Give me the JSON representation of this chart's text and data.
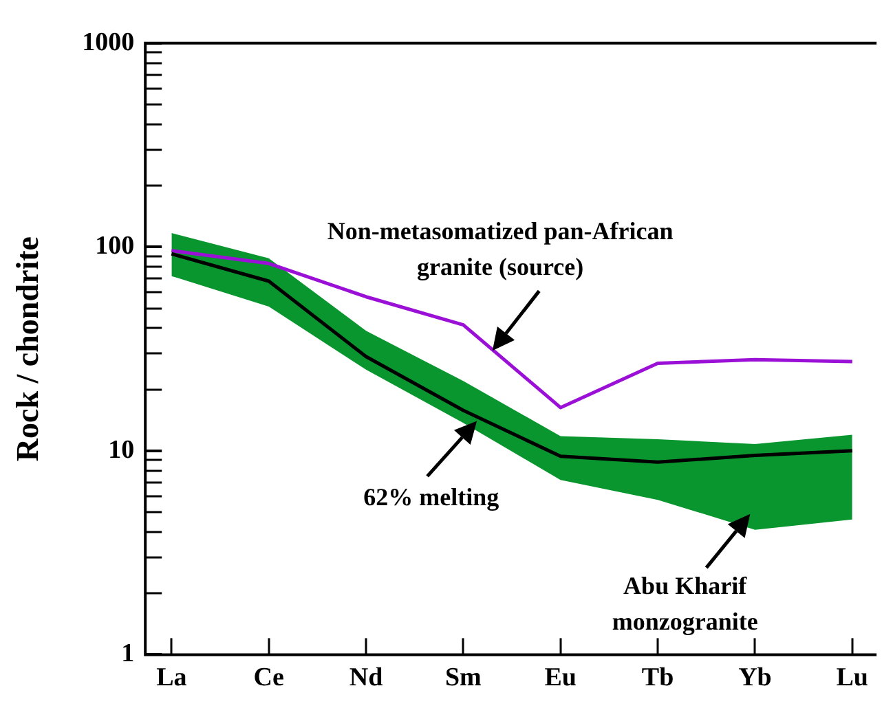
{
  "chart_data": {
    "type": "line",
    "ylabel": "Rock / chondrite",
    "log": "y",
    "categories": [
      "La",
      "Ce",
      "Nd",
      "Sm",
      "Eu",
      "Tb",
      "Yb",
      "Lu"
    ],
    "ylim": [
      1,
      1000
    ],
    "yticks": [
      1,
      {
        "value": 2,
        "label": null
      },
      {
        "value": 3,
        "label": null
      },
      {
        "value": 4,
        "label": null
      },
      {
        "value": 5,
        "label": null
      },
      {
        "value": 6,
        "label": null
      },
      {
        "value": 7,
        "label": null
      },
      {
        "value": 8,
        "label": null
      },
      {
        "value": 9,
        "label": null
      },
      10,
      {
        "value": 20,
        "label": null
      },
      {
        "value": 30,
        "label": null
      },
      {
        "value": 40,
        "label": null
      },
      {
        "value": 50,
        "label": null
      },
      {
        "value": 60,
        "label": null
      },
      {
        "value": 70,
        "label": null
      },
      {
        "value": 80,
        "label": null
      },
      {
        "value": 90,
        "label": null
      },
      100,
      {
        "value": 200,
        "label": null
      },
      {
        "value": 300,
        "label": null
      },
      {
        "value": 400,
        "label": null
      },
      {
        "value": 500,
        "label": null
      },
      {
        "value": 600,
        "label": null
      },
      {
        "value": 700,
        "label": null
      },
      {
        "value": 800,
        "label": null
      },
      {
        "value": 900,
        "label": null
      },
      1000
    ],
    "series": [
      {
        "type": "line",
        "color": "#000000",
        "values": [
          92.6,
          68,
          29,
          15.8,
          9.4,
          8.8,
          9.5,
          10
        ],
        "lower": [
          72,
          51,
          25,
          13.7,
          7.2,
          5.75,
          4.1,
          4.6
        ],
        "upper": [
          117,
          88,
          38.8,
          22,
          11.8,
          11.4,
          10.8,
          12
        ]
      },
      {
        "type": "line",
        "color": "#9b10d6",
        "values": [
          96,
          83,
          57,
          41.5,
          16.3,
          26.9,
          28,
          27.4
        ]
      }
    ],
    "annotations": [
      "Non-metasomatized pan-African\ngranite (source)",
      "62% melting",
      "Abu Kharif\nmonzogranite"
    ],
    "grid": false,
    "legend": false,
    "marker": "none",
    "line_style": "solid"
  }
}
